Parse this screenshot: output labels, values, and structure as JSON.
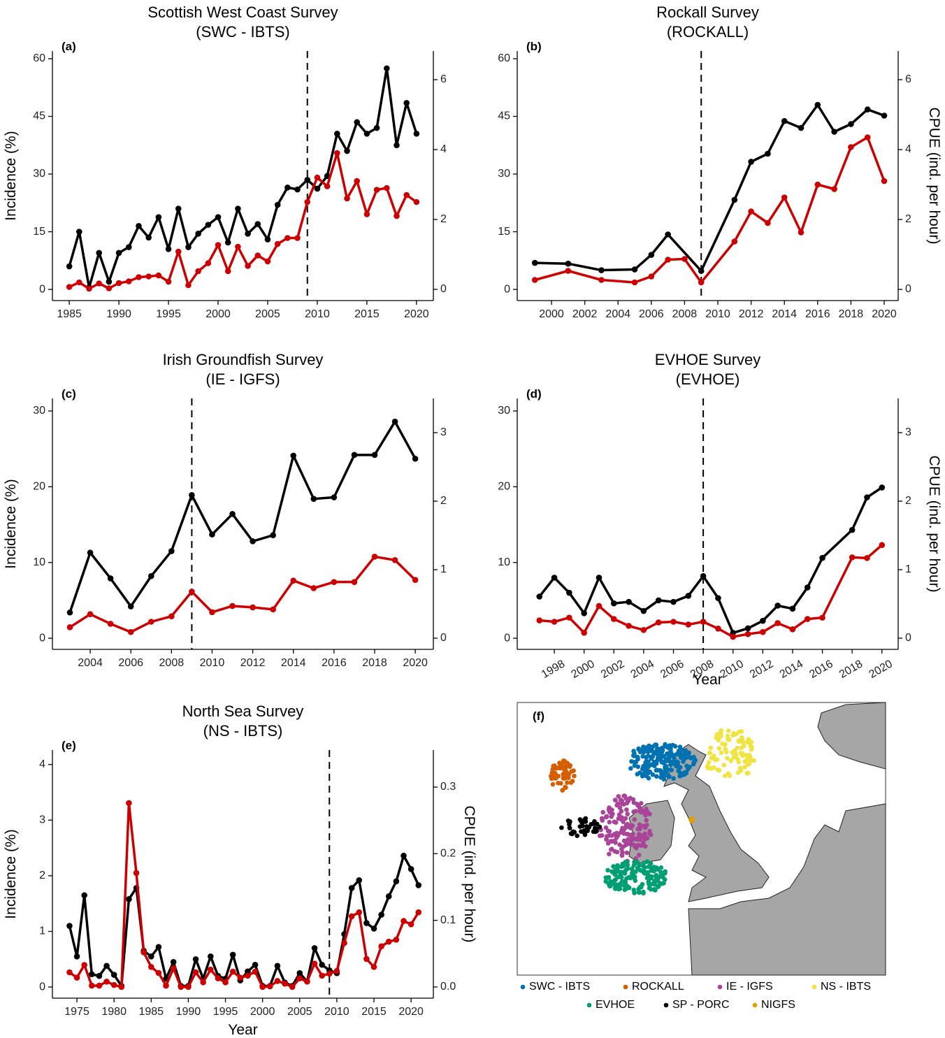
{
  "chart_data": [
    {
      "type": "line",
      "title": "Scottish West Coast Survey",
      "subtitle": "(SWC - IBTS)",
      "label": "(a)",
      "ylabel": "Incidence (%)",
      "x": [
        1985,
        1986,
        1987,
        1988,
        1989,
        1990,
        1991,
        1992,
        1993,
        1994,
        1995,
        1996,
        1997,
        1998,
        1999,
        2000,
        2001,
        2002,
        2003,
        2004,
        2005,
        2006,
        2007,
        2008,
        2009,
        2010,
        2011,
        2012,
        2013,
        2014,
        2015,
        2016,
        2017,
        2018,
        2019,
        2020
      ],
      "series": [
        {
          "color": "#000000",
          "values": [
            6,
            15,
            0.5,
            9.5,
            2,
            9.5,
            11,
            16.5,
            13.5,
            18.8,
            10.5,
            21,
            11,
            14.5,
            16.8,
            18.8,
            12.2,
            21,
            14.5,
            17,
            13,
            22,
            26.5,
            26,
            28.5,
            26.2,
            29.5,
            40.5,
            36,
            43.5,
            40.5,
            42,
            57.5,
            37.5,
            48.5,
            40.5
          ]
        },
        {
          "color": "#cc0000",
          "axis": "y2",
          "values": [
            0.07,
            0.2,
            0.02,
            0.17,
            0.03,
            0.18,
            0.23,
            0.35,
            0.37,
            0.4,
            0.22,
            1.08,
            0.12,
            0.52,
            0.75,
            1.27,
            0.52,
            1.22,
            0.67,
            0.97,
            0.8,
            1.3,
            1.47,
            1.47,
            2.5,
            3.2,
            2.95,
            3.9,
            2.6,
            3.1,
            2.15,
            2.85,
            2.9,
            2.1,
            2.7,
            2.5
          ]
        }
      ],
      "xlim": [
        1983.3,
        2021.7
      ],
      "xticks": [
        1985,
        1990,
        1995,
        2000,
        2005,
        2010,
        2015,
        2020
      ],
      "ylim": [
        -2.9,
        62
      ],
      "yticks": [
        0,
        15,
        30,
        45,
        60
      ],
      "y2lim": [
        -0.32,
        6.82
      ],
      "y2ticks": [
        0,
        2,
        4,
        6
      ],
      "vline": 2009
    },
    {
      "type": "line",
      "title": "Rockall Survey",
      "subtitle": "(ROCKALL)",
      "label": "(b)",
      "y2label": "CPUE (ind. per hour)",
      "series": [
        {
          "color": "#000000",
          "x": [
            1999,
            2001,
            2003,
            2005,
            2006,
            2007,
            2009,
            2011,
            2012,
            2013,
            2014,
            2015,
            2016,
            2017,
            2018,
            2019,
            2020
          ],
          "values": [
            6.9,
            6.7,
            5,
            5.2,
            9,
            14.3,
            4.8,
            23.3,
            33.2,
            35.3,
            43.8,
            42,
            48,
            41,
            43,
            46.8,
            45.2
          ]
        },
        {
          "color": "#cc0000",
          "axis": "y2",
          "x": [
            1999,
            2001,
            2003,
            2005,
            2006,
            2007,
            2008,
            2009,
            2011,
            2012,
            2013,
            2014,
            2015,
            2016,
            2017,
            2018,
            2019,
            2020
          ],
          "values": [
            0.27,
            0.53,
            0.27,
            0.2,
            0.37,
            0.85,
            0.87,
            0.2,
            1.37,
            2.23,
            1.9,
            2.63,
            1.63,
            3,
            2.87,
            4.07,
            4.35,
            3.1
          ]
        }
      ],
      "xlim": [
        1997.94,
        2020.84
      ],
      "xticks": [
        2000,
        2002,
        2004,
        2006,
        2008,
        2010,
        2012,
        2014,
        2016,
        2018,
        2020
      ],
      "ylim": [
        -2.9,
        62
      ],
      "yticks": [
        0,
        15,
        30,
        45,
        60
      ],
      "y2lim": [
        -0.32,
        6.82
      ],
      "y2ticks": [
        0,
        2,
        4,
        6
      ],
      "vline": 2009
    },
    {
      "type": "line",
      "title": "Irish Groundfish Survey",
      "subtitle": "(IE - IGFS)",
      "label": "(c)",
      "ylabel": "Incidence (%)",
      "x": [
        2003,
        2004,
        2005,
        2006,
        2007,
        2008,
        2009,
        2010,
        2011,
        2012,
        2013,
        2014,
        2015,
        2016,
        2017,
        2018,
        2019,
        2020
      ],
      "series": [
        {
          "color": "#000000",
          "values": [
            3.4,
            11.3,
            7.9,
            4.2,
            8.2,
            11.5,
            18.9,
            13.7,
            16.4,
            12.8,
            13.6,
            24.1,
            18.4,
            18.6,
            24.2,
            24.2,
            28.6,
            23.7
          ]
        },
        {
          "color": "#cc0000",
          "axis": "y2",
          "values": [
            0.16,
            0.35,
            0.21,
            0.09,
            0.24,
            0.32,
            0.68,
            0.38,
            0.47,
            0.45,
            0.42,
            0.84,
            0.73,
            0.82,
            0.82,
            1.19,
            1.14,
            0.85
          ]
        }
      ],
      "xlim": [
        2002.14,
        2020.89
      ],
      "xticks": [
        2004,
        2006,
        2008,
        2010,
        2012,
        2014,
        2016,
        2018,
        2020
      ],
      "ylim": [
        -1.47,
        31.66
      ],
      "yticks": [
        0,
        10,
        20,
        30
      ],
      "y2lim": [
        -0.163,
        3.5
      ],
      "y2ticks": [
        0,
        1,
        2,
        3
      ],
      "vline": 2009
    },
    {
      "type": "line",
      "title": "EVHOE Survey",
      "subtitle": "(EVHOE)",
      "label": "(d)",
      "y2label": "CPUE (ind. per hour)",
      "xlabel": "Year",
      "xtick_rotation": -30,
      "x": [
        1997,
        1998,
        1999,
        2000,
        2001,
        2002,
        2003,
        2004,
        2005,
        2006,
        2007,
        2008,
        2009,
        2010,
        2011,
        2012,
        2013,
        2014,
        2015,
        2016,
        2018,
        2019,
        2020
      ],
      "series": [
        {
          "color": "#000000",
          "values": [
            5.5,
            8,
            6,
            3.3,
            8,
            4.6,
            4.8,
            3.6,
            5,
            4.8,
            5.6,
            8.2,
            5.3,
            0.7,
            1.3,
            2.3,
            4.3,
            3.9,
            6.7,
            10.6,
            14.3,
            18.6,
            19.9
          ]
        },
        {
          "color": "#cc0000",
          "axis": "y2",
          "values": [
            0.26,
            0.24,
            0.3,
            0.08,
            0.47,
            0.28,
            0.18,
            0.12,
            0.23,
            0.24,
            0.2,
            0.24,
            0.14,
            0.02,
            0.06,
            0.09,
            0.22,
            0.13,
            0.28,
            0.3,
            1.18,
            1.17,
            1.36
          ]
        }
      ],
      "xlim": [
        1995.51,
        2021.09
      ],
      "xticks": [
        1998,
        2000,
        2002,
        2004,
        2006,
        2008,
        2010,
        2012,
        2014,
        2016,
        2018,
        2020
      ],
      "ylim": [
        -1.47,
        31.66
      ],
      "yticks": [
        0,
        10,
        20,
        30
      ],
      "y2lim": [
        -0.163,
        3.5
      ],
      "y2ticks": [
        0,
        1,
        2,
        3
      ],
      "vline": 2008
    },
    {
      "type": "line",
      "title": "North Sea Survey",
      "subtitle": "(NS - IBTS)",
      "label": "(e)",
      "ylabel": "Incidence (%)",
      "y2label": "CPUE (ind. per hour)",
      "xlabel": "Year",
      "x": [
        1974,
        1975,
        1976,
        1977,
        1978,
        1979,
        1980,
        1981,
        1982,
        1983,
        1984,
        1985,
        1986,
        1987,
        1988,
        1989,
        1990,
        1991,
        1992,
        1993,
        1994,
        1995,
        1996,
        1997,
        1998,
        1999,
        2000,
        2001,
        2002,
        2003,
        2004,
        2005,
        2006,
        2007,
        2008,
        2009,
        2010,
        2011,
        2012,
        2013,
        2014,
        2015,
        2016,
        2017,
        2018,
        2019,
        2020,
        2021
      ],
      "series": [
        {
          "color": "#000000",
          "values": [
            1.1,
            0.55,
            1.65,
            0.23,
            0.2,
            0.38,
            0.22,
            0.02,
            1.58,
            1.78,
            0.65,
            0.55,
            0.72,
            0.15,
            0.45,
            0.02,
            0.02,
            0.5,
            0.15,
            0.55,
            0.2,
            0.15,
            0.58,
            0.12,
            0.28,
            0.4,
            0.02,
            0.02,
            0.38,
            0.08,
            0.02,
            0.25,
            0.1,
            0.7,
            0.4,
            0.3,
            0.25,
            0.95,
            1.78,
            1.92,
            1.15,
            1.05,
            1.3,
            1.63,
            1.9,
            2.36,
            2.12,
            1.83
          ]
        },
        {
          "color": "#cc0000",
          "axis": "y2",
          "values": [
            0.022,
            0.014,
            0.033,
            0.002,
            0.002,
            0.008,
            0.003,
            0,
            0.276,
            0.171,
            0.052,
            0.03,
            0.021,
            0.002,
            0.028,
            0,
            0,
            0.022,
            0.007,
            0.026,
            0.013,
            0.007,
            0.023,
            0.014,
            0.017,
            0.023,
            0,
            0.001,
            0.009,
            0.005,
            0,
            0.013,
            0.008,
            0.035,
            0.017,
            0.02,
            0.024,
            0.066,
            0.106,
            0.112,
            0.042,
            0.03,
            0.061,
            0.068,
            0.071,
            0.099,
            0.094,
            0.112
          ]
        }
      ],
      "xlim": [
        1971.7,
        2023.0
      ],
      "xticks": [
        1975,
        1980,
        1985,
        1990,
        1995,
        2000,
        2005,
        2010,
        2015,
        2020
      ],
      "ylim": [
        -0.2,
        4.26
      ],
      "yticks": [
        0,
        1,
        2,
        3,
        4
      ],
      "y2lim": [
        -0.0168,
        0.3556
      ],
      "y2ticks": [
        {
          "value": 0,
          "label": "0.0"
        },
        0.1,
        0.2,
        0.3
      ],
      "vline": 2009
    }
  ],
  "map": {
    "label": "(f)",
    "legend": [
      {
        "name": "SWC - IBTS",
        "color": "#0072b2"
      },
      {
        "name": "ROCKALL",
        "color": "#d55e00"
      },
      {
        "name": "IE - IGFS",
        "color": "#aa4499"
      },
      {
        "name": "NS - IBTS",
        "color": "#f0e442"
      },
      {
        "name": "EVHOE",
        "color": "#009e73"
      },
      {
        "name": "SP - PORC",
        "color": "#000000"
      },
      {
        "name": "NIGFS",
        "color": "#e69f00"
      }
    ]
  }
}
